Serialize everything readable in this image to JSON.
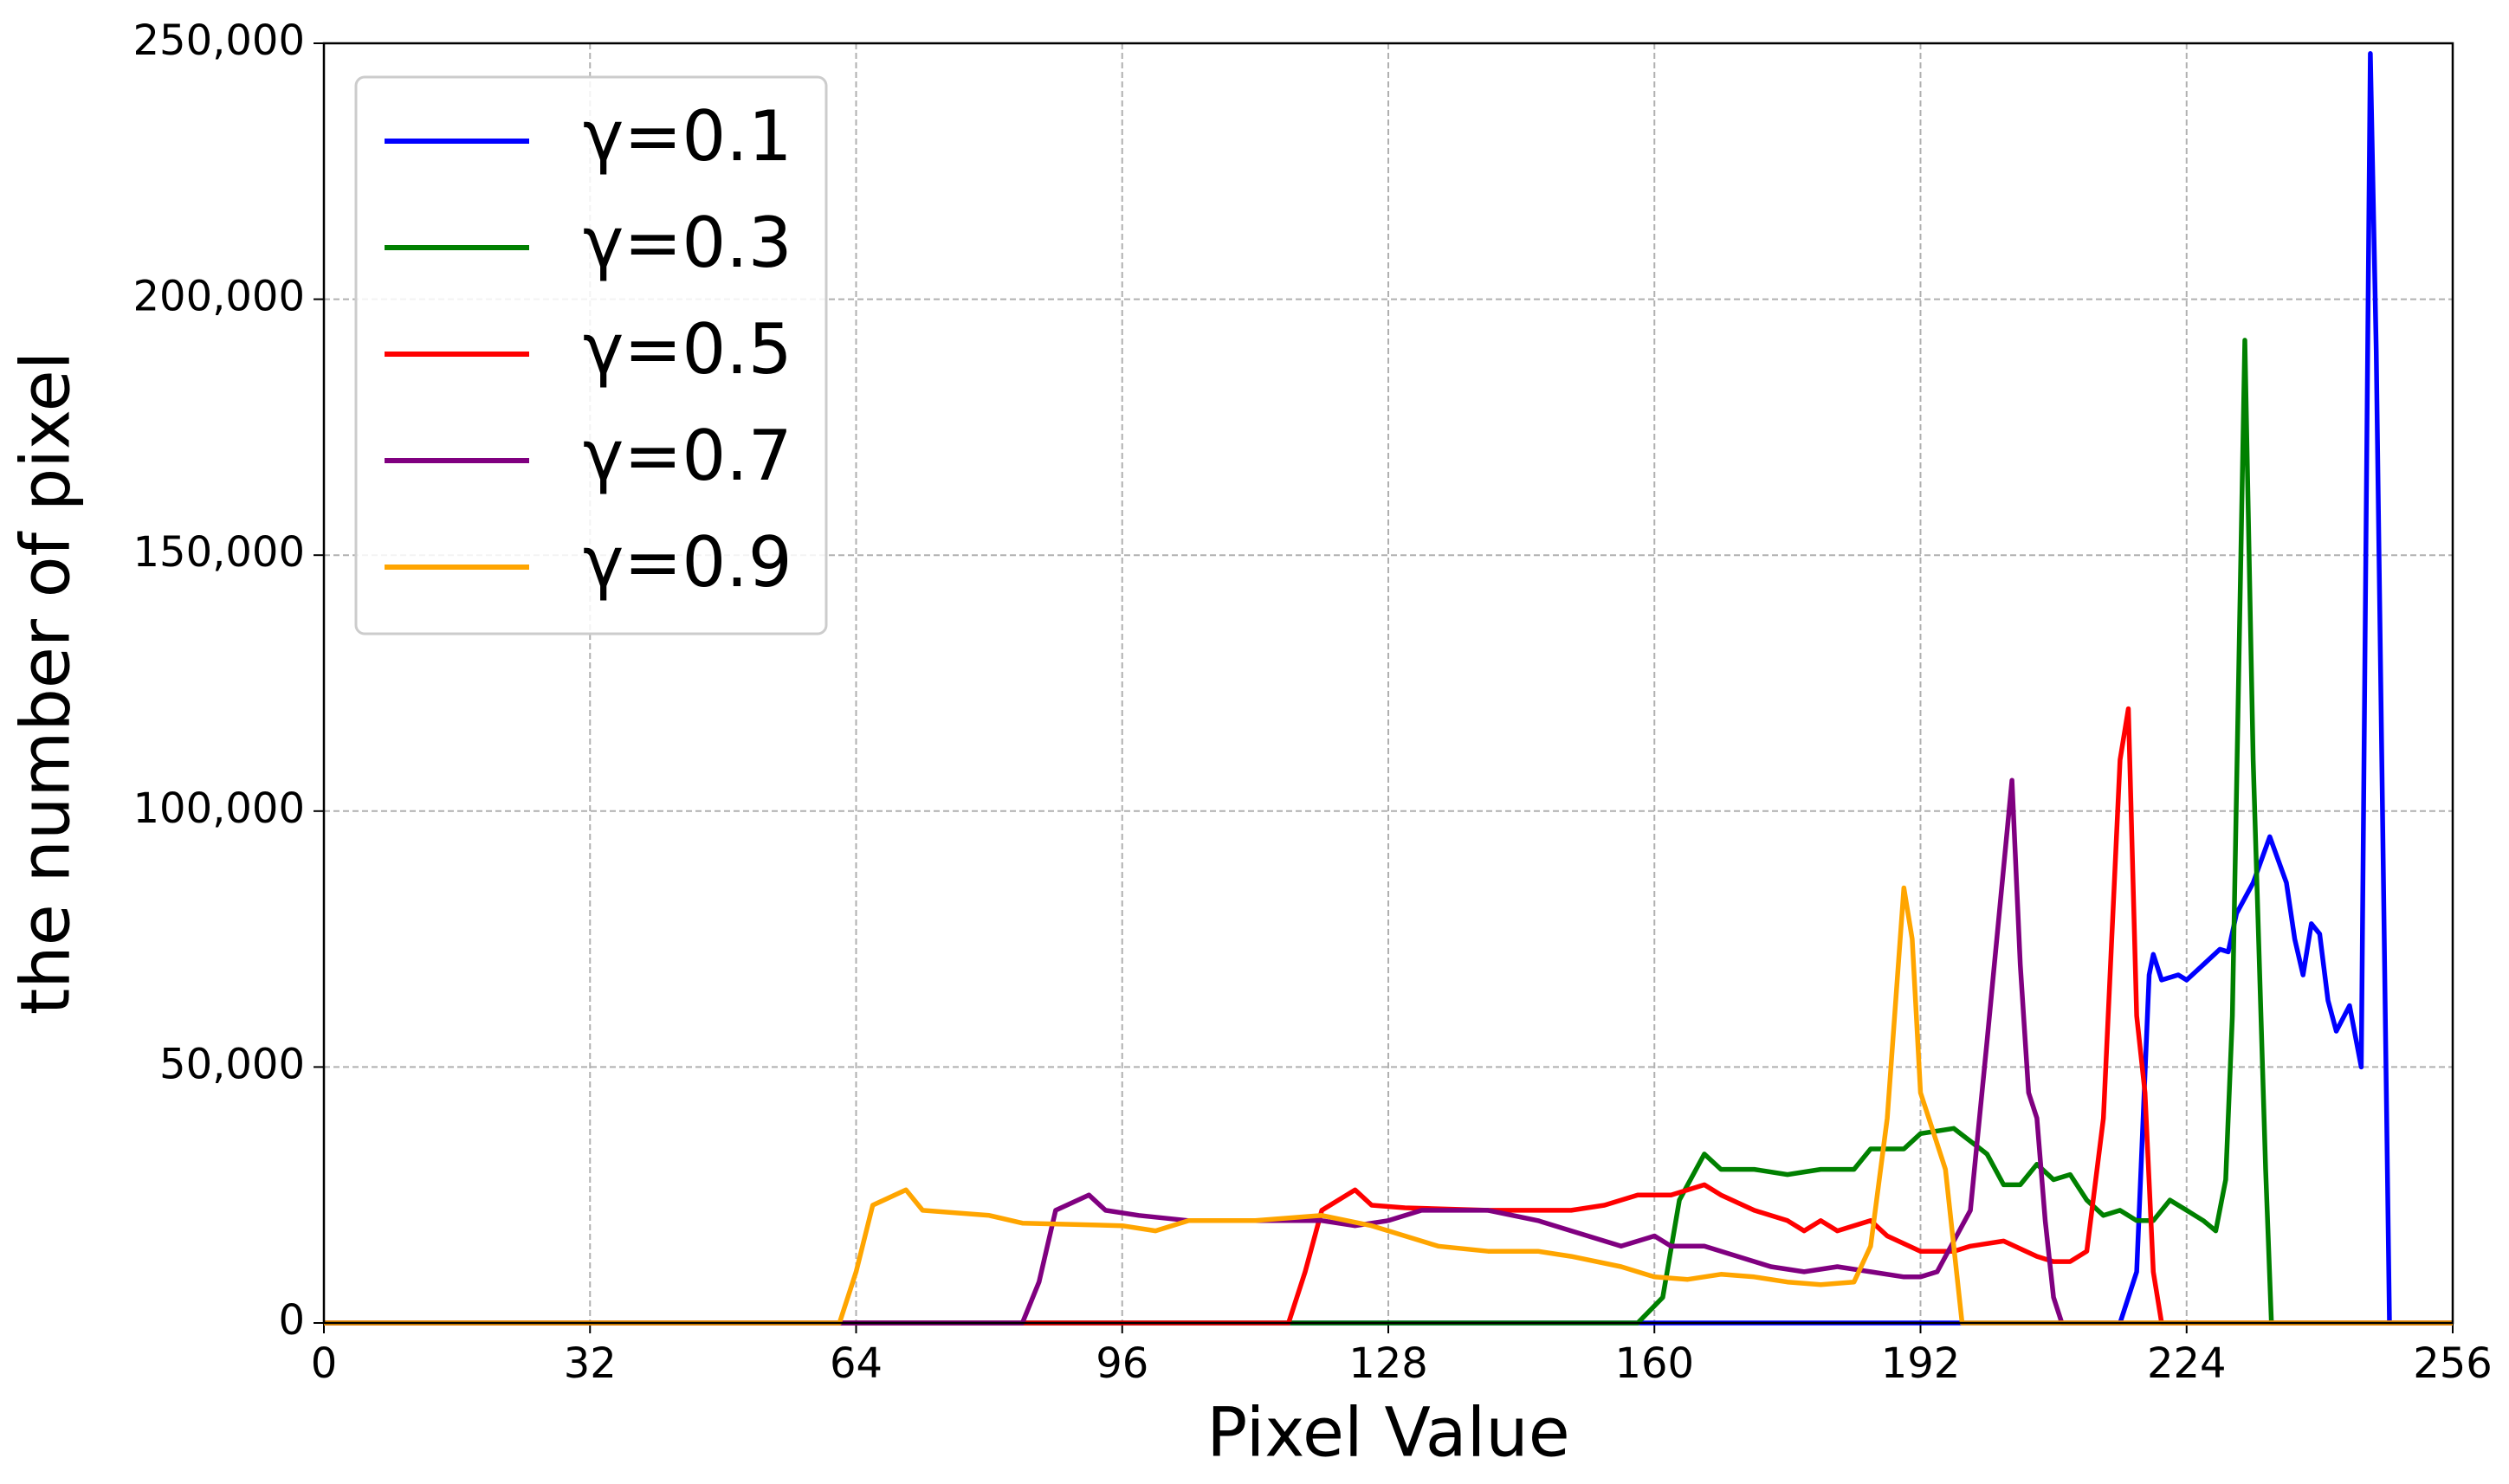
{
  "chart_data": {
    "type": "line",
    "xlabel": "Pixel Value",
    "ylabel": "the number of pixel",
    "xlim": [
      0,
      256
    ],
    "xticks": [
      0,
      32,
      64,
      96,
      128,
      160,
      192,
      224,
      256
    ],
    "ylim": [
      0,
      250000
    ],
    "yticks": [
      0,
      {
        "value": 50000,
        "label": "50,000"
      },
      {
        "value": 100000,
        "label": "100,000"
      },
      {
        "value": 150000,
        "label": "150,000"
      },
      {
        "value": 200000,
        "label": "200,000"
      },
      {
        "value": 250000,
        "label": "250,000"
      }
    ],
    "grid": true,
    "legend": "upper left",
    "series": [
      {
        "name": "γ=0.1",
        "color": "#0000ff",
        "x": [
          0,
          216,
          218,
          219.5,
          220,
          221,
          223,
          224,
          226,
          228,
          229,
          230,
          232,
          234,
          236,
          237,
          238,
          239,
          240,
          241,
          242,
          243.6,
          245,
          246.1,
          246.8,
          248.4,
          256
        ],
        "values": [
          0,
          0,
          10000,
          68000,
          72000,
          67000,
          68000,
          67000,
          70000,
          73000,
          72500,
          80000,
          86000,
          95000,
          86000,
          75000,
          68000,
          78000,
          76000,
          63000,
          57000,
          62000,
          50000,
          248000,
          190000,
          0,
          0
        ]
      },
      {
        "name": "γ=0.3",
        "color": "#008000",
        "x": [
          0,
          158,
          161,
          163,
          166,
          168,
          172,
          176,
          180,
          184,
          186,
          190,
          192,
          196,
          200,
          202,
          204,
          206,
          208,
          210,
          212,
          214,
          216,
          218,
          220,
          222,
          224,
          226,
          227.5,
          228.7,
          229.5,
          231,
          232,
          233.5,
          234.2,
          256
        ],
        "values": [
          0,
          0,
          5000,
          24000,
          33000,
          30000,
          30000,
          29000,
          30000,
          30000,
          34000,
          34000,
          37000,
          38000,
          33000,
          27000,
          27000,
          31000,
          28000,
          29000,
          24000,
          21000,
          22000,
          20000,
          20000,
          24000,
          22000,
          20000,
          18000,
          28000,
          60000,
          192000,
          110000,
          30000,
          0,
          0
        ]
      },
      {
        "name": "γ=0.5",
        "color": "#ff0000",
        "x": [
          0,
          116,
          118,
          120,
          124,
          126,
          130,
          140,
          150,
          154,
          158,
          162,
          166,
          168,
          172,
          176,
          178,
          180,
          182,
          186,
          188,
          192,
          196,
          198,
          202,
          206,
          208,
          210,
          212,
          214,
          216,
          217,
          218,
          219,
          220,
          221,
          256
        ],
        "values": [
          0,
          0,
          10000,
          22000,
          26000,
          23000,
          22500,
          22000,
          22000,
          23000,
          25000,
          25000,
          27000,
          25000,
          22000,
          20000,
          18000,
          20000,
          18000,
          20000,
          17000,
          14000,
          14000,
          15000,
          16000,
          13000,
          12000,
          12000,
          14000,
          40000,
          110000,
          120000,
          60000,
          45000,
          10000,
          0,
          0
        ]
      },
      {
        "name": "γ=0.7",
        "color": "#800080",
        "x": [
          0,
          84,
          86,
          88,
          92,
          94,
          98,
          104,
          110,
          120,
          124,
          128,
          132,
          140,
          146,
          150,
          156,
          160,
          162,
          166,
          170,
          174,
          178,
          182,
          186,
          190,
          192,
          194,
          196,
          198,
          200,
          203,
          204,
          205,
          206,
          207,
          208,
          209,
          256
        ],
        "values": [
          0,
          0,
          8000,
          22000,
          25000,
          22000,
          21000,
          20000,
          20000,
          20000,
          19000,
          20000,
          22000,
          22000,
          20000,
          18000,
          15000,
          17000,
          15000,
          15000,
          13000,
          11000,
          10000,
          11000,
          10000,
          9000,
          9000,
          10000,
          16000,
          22000,
          55000,
          106000,
          70000,
          45000,
          40000,
          20000,
          5000,
          0,
          0
        ]
      },
      {
        "name": "γ=0.9",
        "color": "#ffa500",
        "x": [
          0,
          62,
          64,
          66,
          70,
          72,
          80,
          84,
          96,
          100,
          104,
          112,
          120,
          126,
          130,
          134,
          140,
          146,
          150,
          156,
          160,
          164,
          168,
          172,
          176,
          180,
          184,
          186,
          188,
          190,
          191,
          192,
          193,
          195,
          196,
          197,
          256
        ],
        "values": [
          0,
          0,
          10000,
          23000,
          26000,
          22000,
          21000,
          19500,
          19000,
          18000,
          20000,
          20000,
          21000,
          19000,
          17000,
          15000,
          14000,
          14000,
          13000,
          11000,
          9000,
          8500,
          9500,
          9000,
          8000,
          7500,
          8000,
          15000,
          40000,
          85000,
          75000,
          45000,
          40000,
          30000,
          15000,
          0,
          0
        ]
      }
    ]
  }
}
